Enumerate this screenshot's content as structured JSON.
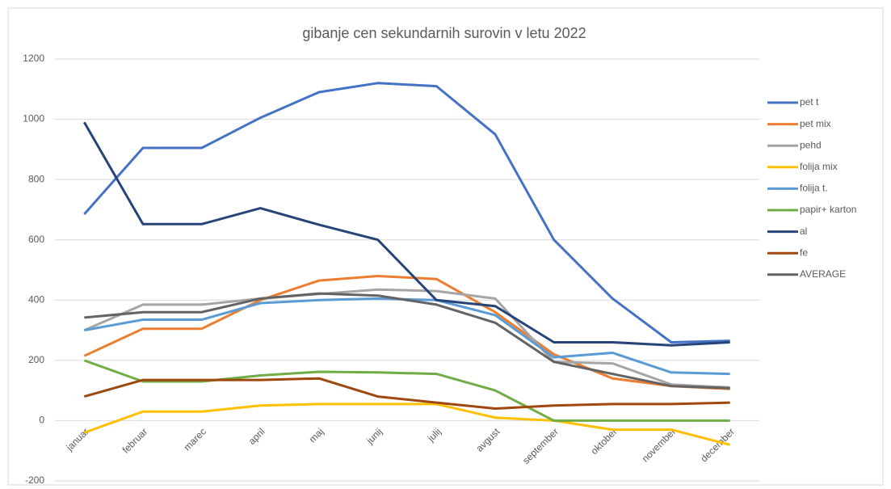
{
  "chart_data": {
    "type": "line",
    "title": "gibanje cen sekundarnih surovin v letu 2022",
    "categories": [
      "januar",
      "februar",
      "marec",
      "april",
      "maj",
      "junij",
      "julij",
      "avgust",
      "september",
      "oktober",
      "november",
      "december"
    ],
    "series": [
      {
        "name": "pet t",
        "color": "#4472c4",
        "values": [
          685,
          905,
          905,
          1005,
          1090,
          1120,
          1110,
          950,
          600,
          405,
          260,
          265
        ]
      },
      {
        "name": "pet mix",
        "color": "#ed7d31",
        "values": [
          215,
          305,
          305,
          400,
          465,
          480,
          470,
          360,
          220,
          140,
          115,
          105
        ]
      },
      {
        "name": "pehd",
        "color": "#a5a5a5",
        "values": [
          300,
          385,
          385,
          405,
          420,
          435,
          430,
          405,
          195,
          190,
          120,
          110
        ]
      },
      {
        "name": "folija mix",
        "color": "#ffc000",
        "values": [
          -40,
          30,
          30,
          50,
          55,
          55,
          55,
          10,
          0,
          -30,
          -30,
          -80
        ]
      },
      {
        "name": "folija t.",
        "color": "#5b9bd5",
        "values": [
          300,
          335,
          335,
          390,
          400,
          405,
          400,
          350,
          210,
          225,
          160,
          155
        ]
      },
      {
        "name": "papir+ karton",
        "color": "#70ad47",
        "values": [
          200,
          130,
          130,
          150,
          162,
          160,
          155,
          100,
          0,
          0,
          0,
          0
        ]
      },
      {
        "name": "al",
        "color": "#264478",
        "values": [
          990,
          652,
          652,
          705,
          650,
          600,
          400,
          380,
          260,
          260,
          250,
          260
        ]
      },
      {
        "name": "fe",
        "color": "#9e480e",
        "values": [
          80,
          135,
          135,
          135,
          140,
          80,
          60,
          40,
          50,
          55,
          55,
          60
        ]
      },
      {
        "name": "AVERAGE",
        "color": "#636363",
        "values": [
          342,
          360,
          360,
          405,
          422,
          415,
          385,
          325,
          195,
          155,
          115,
          108
        ]
      }
    ],
    "ylim": [
      -200,
      1200
    ],
    "yticks": [
      -200,
      0,
      200,
      400,
      600,
      800,
      1000,
      1200
    ],
    "grid": true,
    "legend": "right"
  }
}
